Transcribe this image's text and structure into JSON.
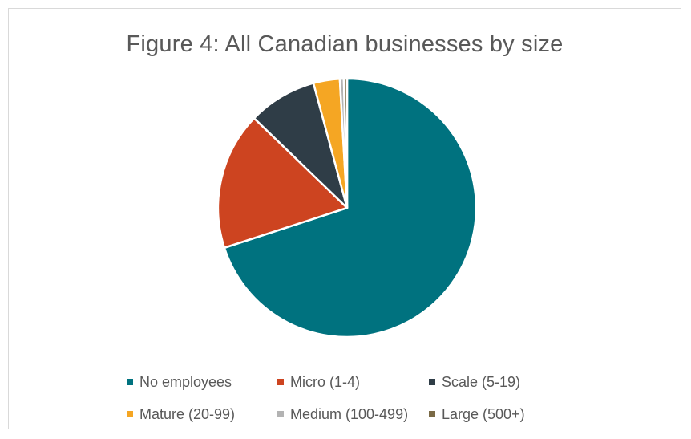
{
  "chart_data": {
    "type": "pie",
    "title": "Figure 4: All Canadian businesses by size",
    "slices": [
      {
        "label": "No employees",
        "value": 70.0,
        "color": "#00727f"
      },
      {
        "label": "Micro (1-4)",
        "value": 17.2,
        "color": "#cd4420"
      },
      {
        "label": "Scale (5-19)",
        "value": 8.6,
        "color": "#2f3d47"
      },
      {
        "label": "Mature (20-99)",
        "value": 3.3,
        "color": "#f5a623"
      },
      {
        "label": "Medium (100-499)",
        "value": 0.5,
        "color": "#b3b3b3"
      },
      {
        "label": "Large (500+)",
        "value": 0.4,
        "color": "#7a6a46"
      }
    ],
    "legend_position": "bottom",
    "start": "top, clockwise"
  }
}
